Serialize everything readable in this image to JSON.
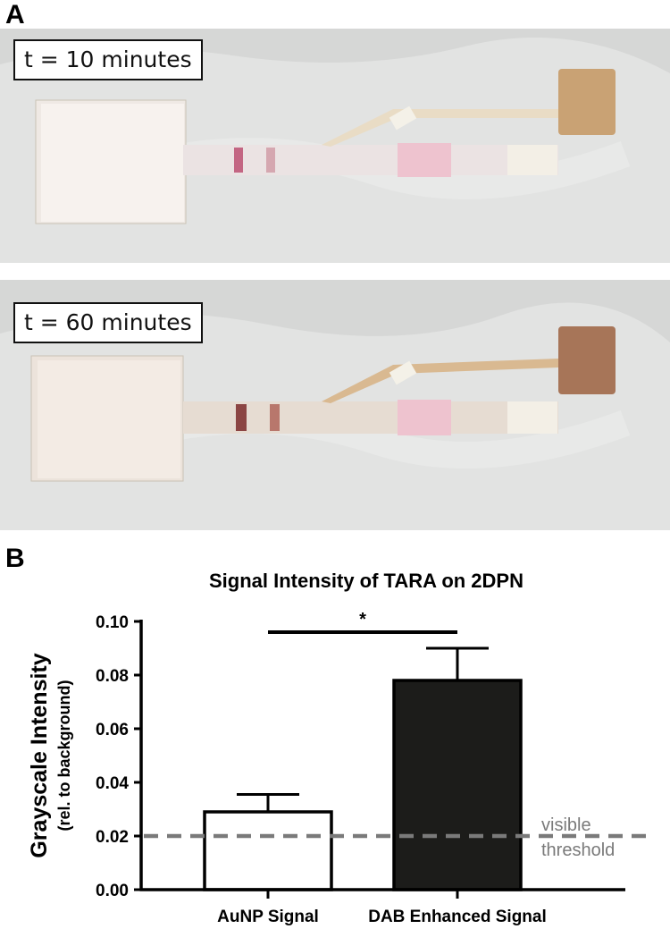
{
  "panels": {
    "a_letter": "A",
    "b_letter": "B"
  },
  "photos": [
    {
      "time_label": "t = 10 minutes"
    },
    {
      "time_label": "t = 60 minutes"
    }
  ],
  "colors": {
    "bar_aunp_fill": "#ffffff",
    "bar_dab_fill": "#1c1c1a",
    "threshold_line": "#7a7a7a",
    "axis": "#000000"
  },
  "chart_data": {
    "type": "bar",
    "title": "Signal Intensity of TARA on 2DPN",
    "ylabel": "Grayscale Intensity",
    "ylabel_sub": "(rel. to background)",
    "ylim": [
      0,
      0.1
    ],
    "yticks": [
      "0.00",
      "0.02",
      "0.04",
      "0.06",
      "0.08",
      "0.10"
    ],
    "categories": [
      "AuNP Signal",
      "DAB Enhanced Signal"
    ],
    "values": [
      0.029,
      0.078
    ],
    "errors": [
      0.0065,
      0.012
    ],
    "significance_label": "*",
    "threshold": {
      "value": 0.02,
      "label_line1": "visible",
      "label_line2": "threshold"
    },
    "grid": false
  }
}
